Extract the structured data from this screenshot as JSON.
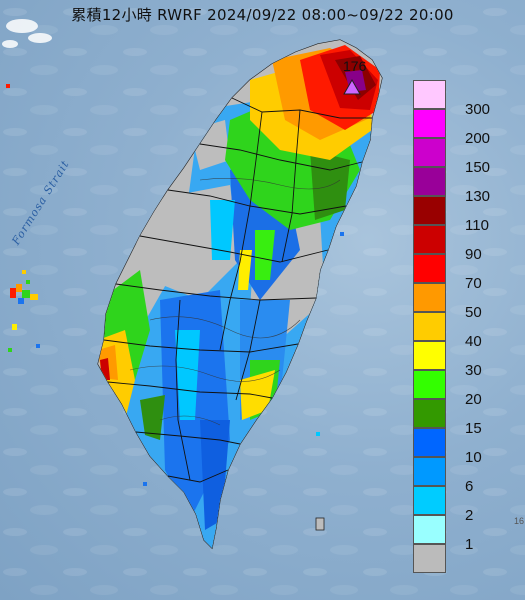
{
  "map": {
    "title": "累積12小時 RWRF 2024/09/22 08:00~09/22 20:00",
    "strait_label": "Formosa Strait",
    "max_value_label": "176",
    "max_marker_icon": "triangle-marker-icon",
    "edge_mark": "16"
  },
  "legend": [
    {
      "label": "300",
      "color": "#ffc8ff"
    },
    {
      "label": "200",
      "color": "#ff00ff"
    },
    {
      "label": "150",
      "color": "#cc00cc"
    },
    {
      "label": "130",
      "color": "#990099"
    },
    {
      "label": "110",
      "color": "#990000"
    },
    {
      "label": "90",
      "color": "#cc0000"
    },
    {
      "label": "70",
      "color": "#ff0000"
    },
    {
      "label": "50",
      "color": "#ff9900"
    },
    {
      "label": "40",
      "color": "#ffcc00"
    },
    {
      "label": "30",
      "color": "#ffff00"
    },
    {
      "label": "20",
      "color": "#33ff00"
    },
    {
      "label": "15",
      "color": "#339900"
    },
    {
      "label": "10",
      "color": "#0066ff"
    },
    {
      "label": "6",
      "color": "#0099ff"
    },
    {
      "label": "2",
      "color": "#00ccff"
    },
    {
      "label": "1",
      "color": "#99ffff"
    },
    {
      "label": "",
      "color": "#bbbbbb"
    }
  ]
}
